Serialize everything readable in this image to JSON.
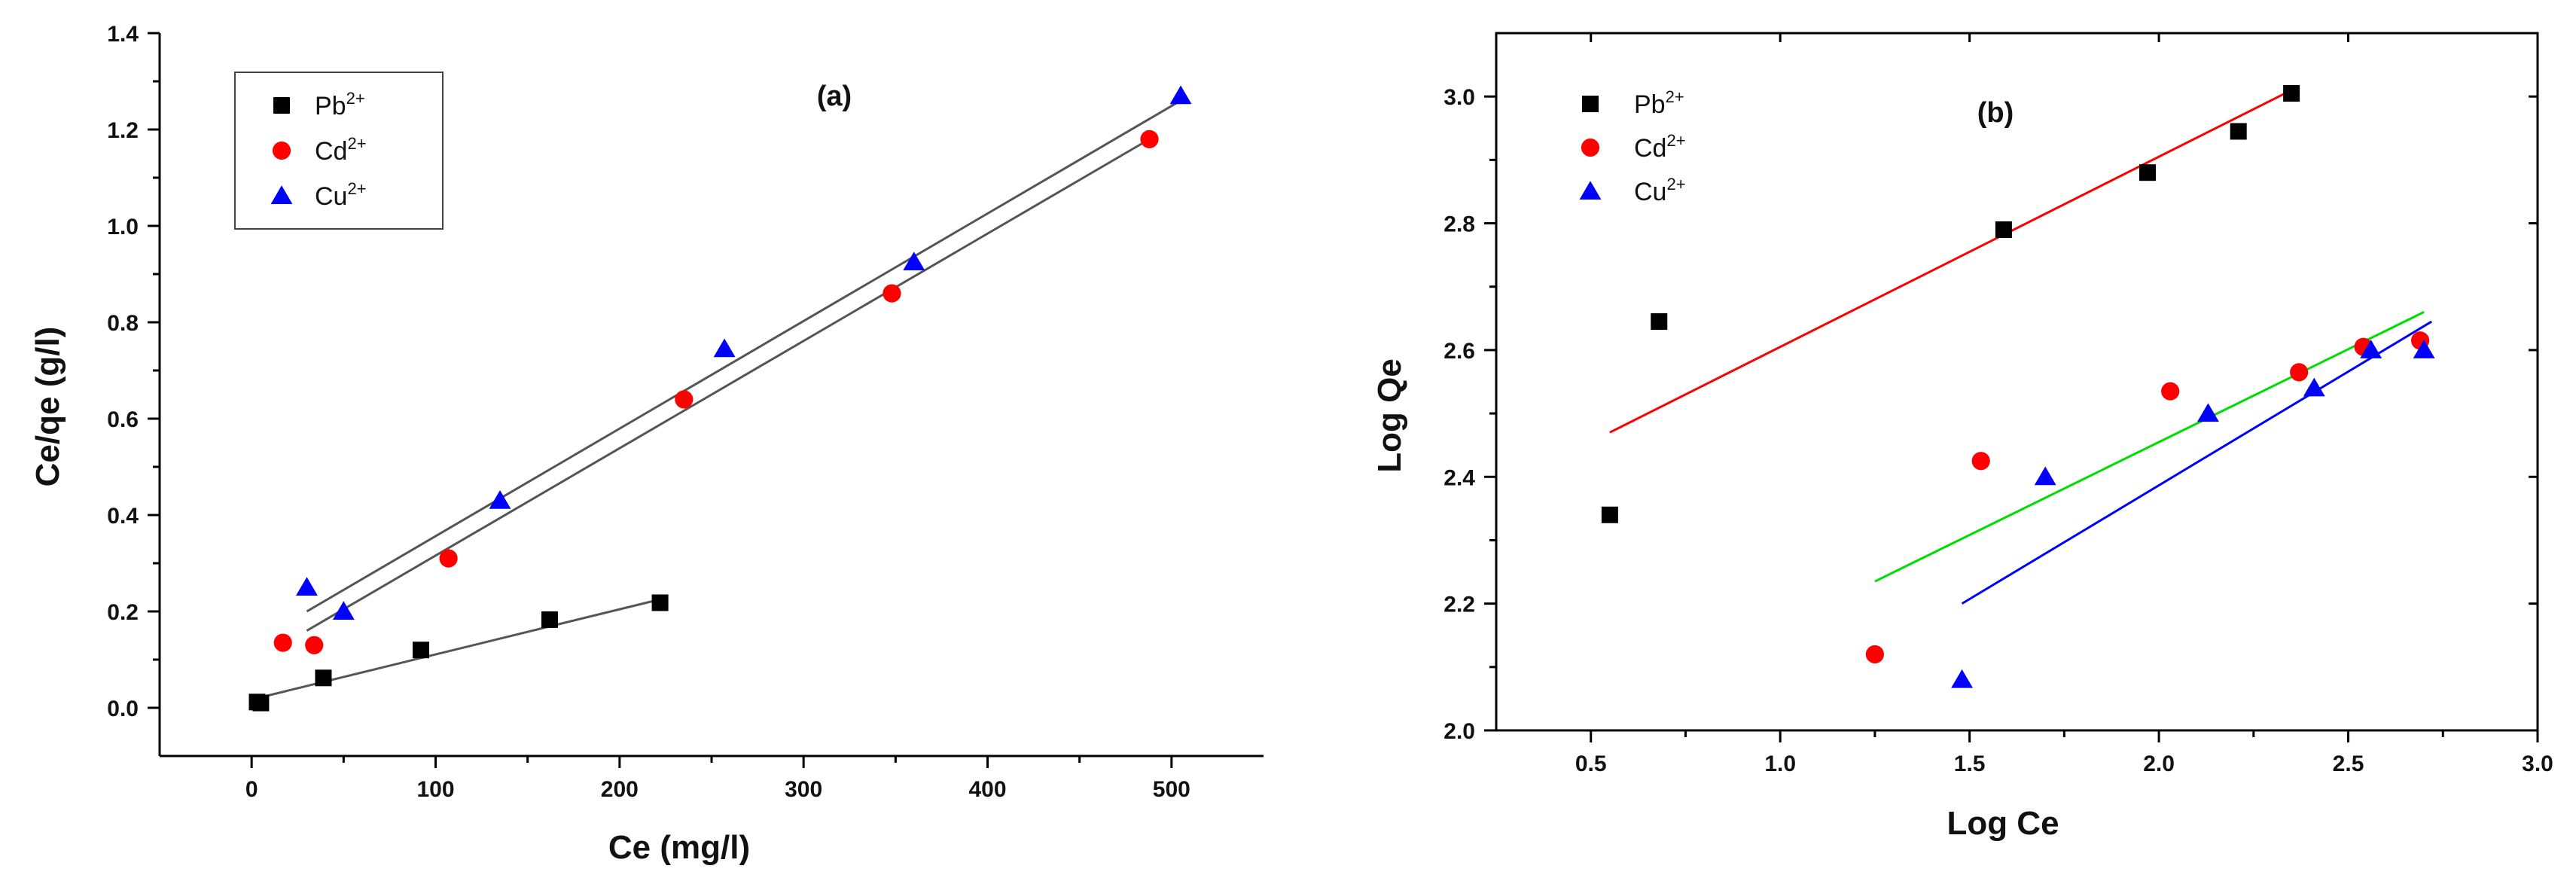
{
  "chart_data": [
    {
      "id": "a",
      "type": "scatter",
      "panel_label": "(a)",
      "xlabel": "Ce (mg/l)",
      "ylabel": "Ce/qe (g/l)",
      "xlim": [
        -50,
        550
      ],
      "ylim": [
        -0.1,
        1.4
      ],
      "xticks": [
        0,
        100,
        200,
        300,
        400,
        500
      ],
      "xtick_labels": [
        "0",
        "100",
        "200",
        "300",
        "400",
        "500"
      ],
      "yticks": [
        0.0,
        0.2,
        0.4,
        0.6,
        0.8,
        1.0,
        1.2,
        1.4
      ],
      "ytick_labels": [
        "0.0",
        "0.2",
        "0.4",
        "0.6",
        "0.8",
        "1.0",
        "1.2",
        "1.4"
      ],
      "legend_position": "top-left",
      "series": [
        {
          "name": "Pb",
          "charge": "2+",
          "marker": "square",
          "color": "#000000",
          "x": [
            3,
            5,
            39,
            92,
            162,
            222
          ],
          "y": [
            0.012,
            0.01,
            0.062,
            0.12,
            0.183,
            0.218
          ]
        },
        {
          "name": "Cd",
          "charge": "2+",
          "marker": "circle",
          "color": "#ff0000",
          "x": [
            17,
            34,
            107,
            235,
            348,
            488
          ],
          "y": [
            0.135,
            0.13,
            0.31,
            0.64,
            0.86,
            1.18
          ]
        },
        {
          "name": "Cu",
          "charge": "2+",
          "marker": "triangle",
          "color": "#0000ff",
          "x": [
            30,
            50,
            135,
            257,
            360,
            505
          ],
          "y": [
            0.25,
            0.2,
            0.43,
            0.745,
            0.925,
            1.27
          ]
        }
      ],
      "fit_lines": [
        {
          "series": "Pb",
          "color": "#555555",
          "x": [
            3,
            222
          ],
          "y": [
            0.02,
            0.225
          ]
        },
        {
          "series": "Cd",
          "color": "#555555",
          "x": [
            30,
            488
          ],
          "y": [
            0.16,
            1.18
          ]
        },
        {
          "series": "Cu",
          "color": "#555555",
          "x": [
            30,
            505
          ],
          "y": [
            0.2,
            1.26
          ]
        }
      ]
    },
    {
      "id": "b",
      "type": "scatter",
      "panel_label": "(b)",
      "xlabel": "Log Ce",
      "ylabel": "Log Qe",
      "xlim": [
        0.25,
        3.0
      ],
      "ylim": [
        2.0,
        3.1
      ],
      "xticks": [
        0.5,
        1.0,
        1.5,
        2.0,
        2.5,
        3.0
      ],
      "xtick_labels": [
        "0.5",
        "1.0",
        "1.5",
        "2.0",
        "2.5",
        "3.0"
      ],
      "yticks": [
        2.0,
        2.2,
        2.4,
        2.6,
        2.8,
        3.0
      ],
      "ytick_labels": [
        "2.0",
        "2.2",
        "2.4",
        "2.6",
        "2.8",
        "3.0"
      ],
      "legend_position": "top-left",
      "series": [
        {
          "name": "Pb",
          "charge": "2+",
          "marker": "square",
          "color": "#000000",
          "x": [
            0.55,
            0.68,
            1.59,
            1.97,
            2.21,
            2.35
          ],
          "y": [
            2.34,
            2.645,
            2.79,
            2.88,
            2.945,
            3.005
          ]
        },
        {
          "name": "Cd",
          "charge": "2+",
          "marker": "circle",
          "color": "#ff0000",
          "x": [
            1.25,
            1.53,
            2.03,
            2.37,
            2.54,
            2.69
          ],
          "y": [
            2.12,
            2.425,
            2.535,
            2.565,
            2.605,
            2.615
          ]
        },
        {
          "name": "Cu",
          "charge": "2+",
          "marker": "triangle",
          "color": "#0000ff",
          "x": [
            1.48,
            1.7,
            2.13,
            2.41,
            2.56,
            2.7
          ],
          "y": [
            2.08,
            2.4,
            2.5,
            2.54,
            2.6,
            2.6
          ]
        }
      ],
      "fit_lines": [
        {
          "series": "Pb",
          "color": "#ff0000",
          "x": [
            0.55,
            2.35
          ],
          "y": [
            2.47,
            3.01
          ]
        },
        {
          "series": "Cd",
          "color": "#00dd00",
          "x": [
            1.25,
            2.7
          ],
          "y": [
            2.235,
            2.66
          ]
        },
        {
          "series": "Cu",
          "color": "#0000ff",
          "x": [
            1.48,
            2.72
          ],
          "y": [
            2.2,
            2.645
          ]
        }
      ]
    }
  ]
}
